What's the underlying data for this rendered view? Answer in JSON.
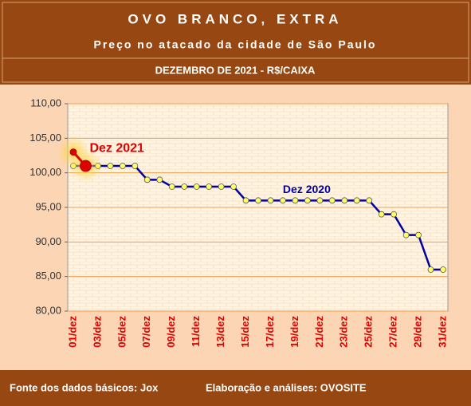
{
  "chart_data": {
    "type": "line",
    "title": "OVO BRANCO, EXTRA",
    "subtitle": "Preço no atacado da cidade de São Paulo",
    "period": "DEZEMBRO DE 2021 - R$/CAIXA",
    "source": "Fonte dos dados básicos: Jox",
    "credit": "Elaboração e análises: OVOSITE",
    "categories": [
      "01/dez",
      null,
      "03/dez",
      null,
      "05/dez",
      null,
      "07/dez",
      null,
      "09/dez",
      null,
      "11/dez",
      null,
      "13/dez",
      null,
      "15/dez",
      null,
      "17/dez",
      null,
      "19/dez",
      null,
      "21/dez",
      null,
      "23/dez",
      null,
      "25/dez",
      null,
      "27/dez",
      null,
      "29/dez",
      null,
      "31/dez"
    ],
    "series": [
      {
        "name": "Dez 2020",
        "color": "#0000a0",
        "values": [
          101,
          101,
          101,
          101,
          101,
          101,
          99,
          99,
          98,
          98,
          98,
          98,
          98,
          98,
          96,
          96,
          96,
          96,
          96,
          96,
          96,
          96,
          96,
          96,
          96,
          94,
          94,
          91,
          91,
          86,
          86
        ]
      },
      {
        "name": "Dez 2021",
        "color": "#e00000",
        "values": [
          103,
          101,
          null,
          null,
          null,
          null,
          null,
          null,
          null,
          null,
          null,
          null,
          null,
          null,
          null,
          null,
          null,
          null,
          null,
          null,
          null,
          null,
          null,
          null,
          null,
          null,
          null,
          null,
          null,
          null,
          null
        ]
      }
    ],
    "ylim": [
      80,
      110
    ],
    "yticks": [
      {
        "value": 80,
        "label": "80,00"
      },
      {
        "value": 85,
        "label": "85,00"
      },
      {
        "value": 90,
        "label": "90,00"
      },
      {
        "value": 95,
        "label": "95,00"
      },
      {
        "value": 100,
        "label": "100,00"
      },
      {
        "value": 105,
        "label": "105,00"
      },
      {
        "value": 110,
        "label": "110,00"
      }
    ],
    "grid": true
  }
}
